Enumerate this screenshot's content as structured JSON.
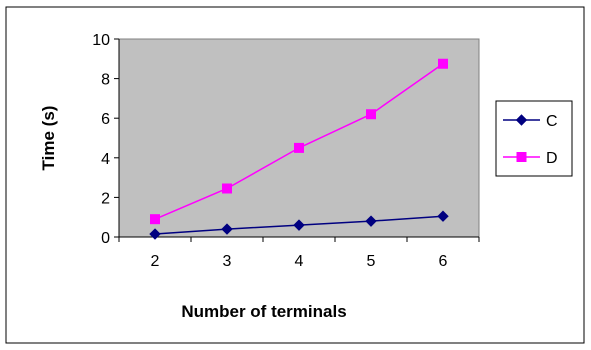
{
  "chart_data": {
    "type": "line",
    "title": "",
    "xlabel": "Number of terminals",
    "ylabel": "Time (s)",
    "categories": [
      "2",
      "3",
      "4",
      "5",
      "6"
    ],
    "ylim": [
      0,
      10
    ],
    "yticks": [
      "0",
      "2",
      "4",
      "6",
      "8",
      "10"
    ],
    "grid": false,
    "legend_position": "right",
    "series": [
      {
        "name": "C",
        "values": [
          0.15,
          0.4,
          0.6,
          0.8,
          1.05
        ],
        "color": "#000080",
        "marker": "diamond"
      },
      {
        "name": "D",
        "values": [
          0.9,
          2.45,
          4.5,
          6.2,
          8.75
        ],
        "color": "#ff00ff",
        "marker": "square"
      }
    ],
    "plot_background": "#c0c0c0"
  }
}
